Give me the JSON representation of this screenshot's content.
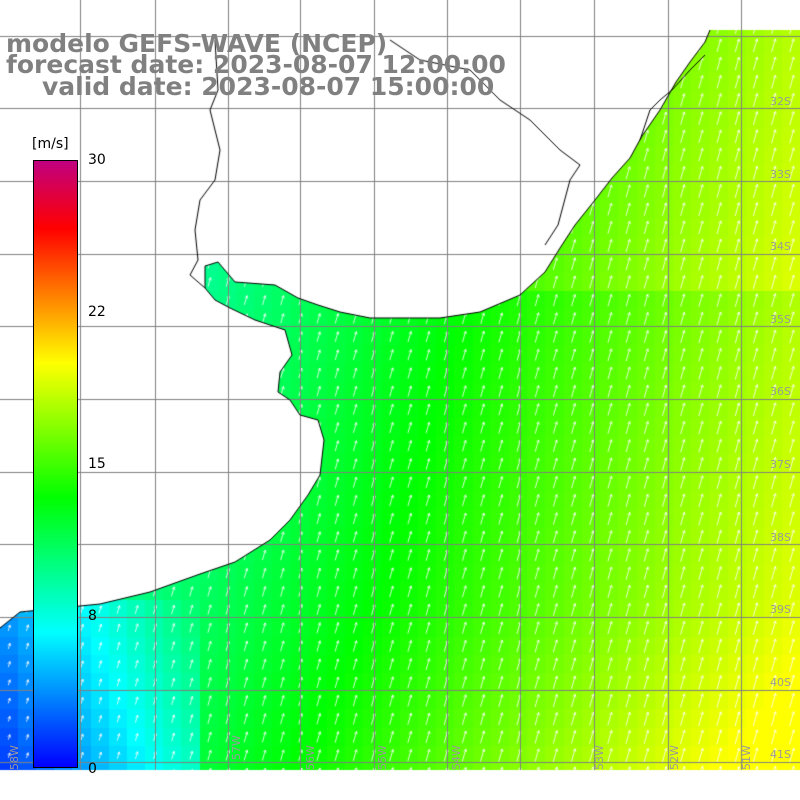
{
  "title": {
    "model": "modelo GEFS-WAVE (NCEP)",
    "forecast": "forecast date: 2023-08-07 12:00:00",
    "valid": "valid date: 2023-08-07 15:00:00"
  },
  "legend": {
    "units": "[m/s]",
    "ticks": [
      "30",
      "22",
      "15",
      "8",
      "0"
    ],
    "tick_values": [
      30,
      22,
      15,
      8,
      0
    ],
    "range": [
      0,
      30
    ],
    "colors": [
      "#0000ff",
      "#0080ff",
      "#00ffff",
      "#00ff80",
      "#00ff00",
      "#80ff00",
      "#ffff00",
      "#ff8000",
      "#ff0000",
      "#c00080"
    ]
  },
  "map": {
    "lat_labels": [
      "32S",
      "33S",
      "34S",
      "35S",
      "36S",
      "37S",
      "38S",
      "39S",
      "40S",
      "41S"
    ],
    "lon_labels": [
      "58W",
      "57W",
      "56W",
      "55W",
      "54W",
      "53W",
      "52W",
      "51W"
    ],
    "land_color": "#ffffff",
    "grid_color": "#808080",
    "arrow_color": "#ffffff"
  }
}
